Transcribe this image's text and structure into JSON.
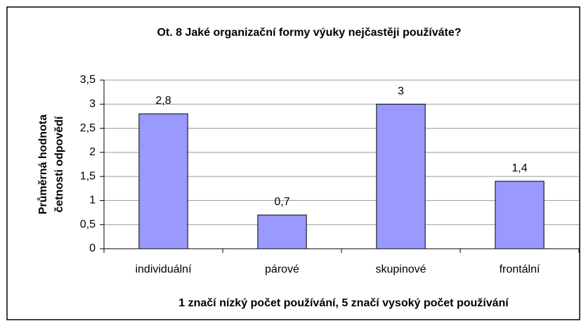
{
  "chart_data": {
    "type": "bar",
    "title": "Ot. 8 Jaké organizační formy výuky nejčastěji používáte?",
    "ylabel": [
      "Průměrná hodnota",
      "četnosti odpovědí"
    ],
    "xlabel": "1 značí nízký počet používání, 5 značí vysoký počet používání",
    "categories": [
      "individuální",
      "párové",
      "skupinové",
      "frontální"
    ],
    "values": [
      2.8,
      0.7,
      3,
      1.4
    ],
    "value_labels": [
      "2,8",
      "0,7",
      "3",
      "1,4"
    ],
    "color": "#9999ff",
    "ylim": [
      0,
      3.5
    ],
    "yticks": [
      0,
      {
        "value": 0.5,
        "label": "0,5"
      },
      1,
      {
        "value": 1.5,
        "label": "1,5"
      },
      2,
      {
        "value": 2.5,
        "label": "2,5"
      },
      3,
      {
        "value": 3.5,
        "label": "3,5"
      }
    ],
    "grid": true
  }
}
